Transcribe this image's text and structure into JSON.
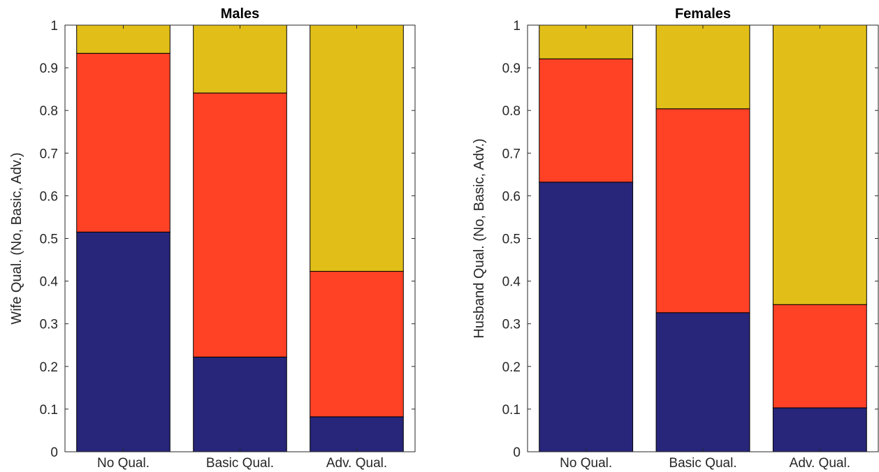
{
  "chart_data": [
    {
      "type": "bar",
      "stacked": true,
      "title": "Males",
      "xlabel": "",
      "ylabel": "Wife Qual. (No, Basic, Adv.)",
      "ylim": [
        0,
        1
      ],
      "yticks": [
        "0",
        "0.1",
        "0.2",
        "0.3",
        "0.4",
        "0.5",
        "0.6",
        "0.7",
        "0.8",
        "0.9",
        "1"
      ],
      "categories": [
        "No Qual.",
        "Basic Qual.",
        "Adv. Qual."
      ],
      "series": [
        {
          "color": "#27267a",
          "values": [
            0.515,
            0.222,
            0.082
          ]
        },
        {
          "color": "#ff4126",
          "values": [
            0.419,
            0.619,
            0.341
          ]
        },
        {
          "color": "#e2bf18",
          "values": [
            0.066,
            0.159,
            0.577
          ]
        }
      ],
      "grid": false,
      "legend": "none"
    },
    {
      "type": "bar",
      "stacked": true,
      "title": "Females",
      "xlabel": "",
      "ylabel": "Husband Qual. (No, Basic, Adv.)",
      "ylim": [
        0,
        1
      ],
      "yticks": [
        "0",
        "0.1",
        "0.2",
        "0.3",
        "0.4",
        "0.5",
        "0.6",
        "0.7",
        "0.8",
        "0.9",
        "1"
      ],
      "categories": [
        "No Qual.",
        "Basic Qual.",
        "Adv. Qual."
      ],
      "series": [
        {
          "color": "#27267a",
          "values": [
            0.632,
            0.326,
            0.103
          ]
        },
        {
          "color": "#ff4126",
          "values": [
            0.289,
            0.478,
            0.242
          ]
        },
        {
          "color": "#e2bf18",
          "values": [
            0.079,
            0.196,
            0.655
          ]
        }
      ],
      "grid": false,
      "legend": "none"
    }
  ]
}
